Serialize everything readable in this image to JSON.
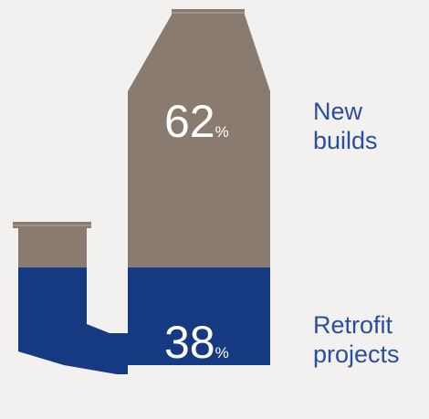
{
  "chart_data": {
    "type": "proportion",
    "unit": "%",
    "series": [
      {
        "name": "New builds",
        "color": "#897b70",
        "values": [
          62
        ]
      },
      {
        "name": "Retrofit projects",
        "color": "#163a82",
        "values": [
          38
        ]
      }
    ]
  }
}
